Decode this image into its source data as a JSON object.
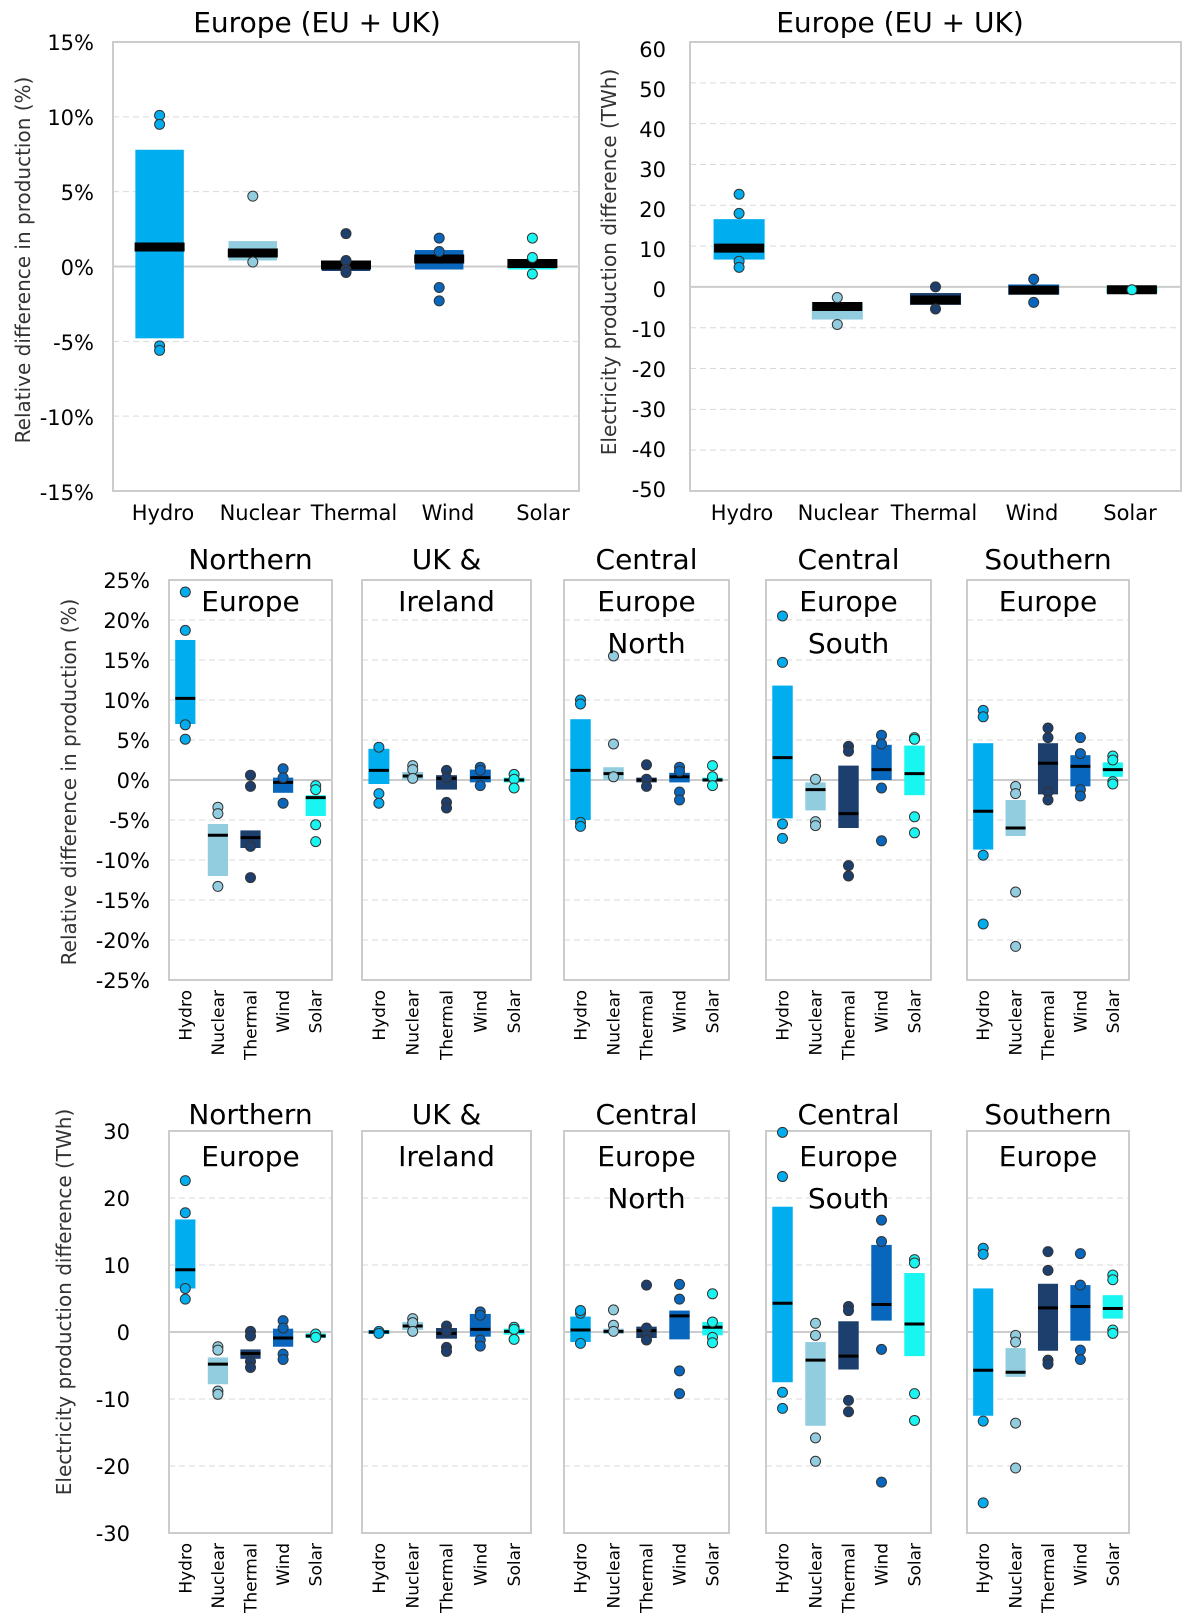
{
  "colors": {
    "Hydro": "#00aeef",
    "Nuclear": "#92cddf",
    "Thermal": "#1d3f6e",
    "Wind": "#0867bd",
    "Solar": "#19f5f0",
    "median": "#000000",
    "frame": "#cccccc",
    "grid": "#d9d9d9"
  },
  "chart_data": [
    {
      "type": "box",
      "title": "Europe (EU + UK)",
      "ylabel": "Relative difference in production (%)",
      "ylim": [
        -15,
        15
      ],
      "yticks": [
        -15,
        -10,
        -5,
        0,
        5,
        10,
        15
      ],
      "ytick_labels": [
        "-15%",
        "-10%",
        "-5%",
        "0%",
        "5%",
        "10%",
        "15%"
      ],
      "categories": [
        "Hydro",
        "Nuclear",
        "Thermal",
        "Wind",
        "Solar"
      ],
      "boxes": [
        {
          "name": "Hydro",
          "low": -4.8,
          "high": 7.8,
          "median": 1.3,
          "points": [
            10.1,
            9.5,
            -5.3,
            -5.6
          ]
        },
        {
          "name": "Nuclear",
          "low": 0.4,
          "high": 1.7,
          "median": 0.9,
          "points": [
            4.7,
            0.3
          ]
        },
        {
          "name": "Thermal",
          "low": -0.3,
          "high": 0.4,
          "median": 0.1,
          "points": [
            2.2,
            0.4,
            -0.2,
            -0.4
          ]
        },
        {
          "name": "Wind",
          "low": -0.2,
          "high": 1.1,
          "median": 0.5,
          "points": [
            1.9,
            1.0,
            -1.4,
            -2.3
          ]
        },
        {
          "name": "Solar",
          "low": -0.2,
          "high": 0.5,
          "median": 0.2,
          "points": [
            1.9,
            0.6,
            -0.5
          ]
        }
      ]
    },
    {
      "type": "box",
      "title": "Europe (EU + UK)",
      "ylabel": "Electricity production difference (TWh)",
      "ylim": [
        -50,
        60
      ],
      "yticks": [
        -50,
        -40,
        -30,
        -20,
        -10,
        0,
        10,
        20,
        30,
        40,
        50,
        60
      ],
      "ytick_labels": [
        "-50",
        "-40",
        "-30",
        "-20",
        "-10",
        "0",
        "10",
        "20",
        "30",
        "40",
        "50",
        "60"
      ],
      "categories": [
        "Hydro",
        "Nuclear",
        "Thermal",
        "Wind",
        "Solar"
      ],
      "boxes": [
        {
          "name": "Hydro",
          "low": 6.7,
          "high": 16.6,
          "median": 9.5,
          "points": [
            22.7,
            18.0,
            6.3,
            4.8
          ]
        },
        {
          "name": "Nuclear",
          "low": -8.0,
          "high": -3.7,
          "median": -4.8,
          "points": [
            -2.6,
            -9.2
          ]
        },
        {
          "name": "Thermal",
          "low": -4.4,
          "high": -1.5,
          "median": -3.2,
          "points": [
            0.0,
            -5.4
          ]
        },
        {
          "name": "Wind",
          "low": -1.9,
          "high": 0.6,
          "median": -0.8,
          "points": [
            1.9,
            -3.8
          ]
        },
        {
          "name": "Solar",
          "low": -1.5,
          "high": 0.0,
          "median": -0.7,
          "points": [
            -0.7
          ]
        }
      ]
    },
    {
      "type": "box",
      "ylabel": "Relative difference in production (%)",
      "ylim": [
        -25,
        25
      ],
      "yticks": [
        -25,
        -20,
        -15,
        -10,
        -5,
        0,
        5,
        10,
        15,
        20,
        25
      ],
      "ytick_labels": [
        "-25%",
        "-20%",
        "-15%",
        "-10%",
        "-5%",
        "0%",
        "5%",
        "10%",
        "15%",
        "20%",
        "25%"
      ],
      "categories": [
        "Hydro",
        "Nuclear",
        "Thermal",
        "Wind",
        "Solar"
      ],
      "panels": [
        {
          "title_lines": [
            "Northern",
            "Europe"
          ],
          "boxes": [
            {
              "name": "Hydro",
              "low": 7.0,
              "high": 17.5,
              "median": 10.2,
              "points": [
                23.5,
                18.7,
                6.9,
                5.1
              ]
            },
            {
              "name": "Nuclear",
              "low": -12.0,
              "high": -5.5,
              "median": -6.9,
              "points": [
                -3.4,
                -4.2,
                -13.3
              ]
            },
            {
              "name": "Thermal",
              "low": -8.5,
              "high": -6.3,
              "median": -7.2,
              "points": [
                0.6,
                -0.8,
                -8.3,
                -12.2
              ]
            },
            {
              "name": "Wind",
              "low": -1.6,
              "high": 0.3,
              "median": -0.3,
              "points": [
                1.4,
                0.3,
                -2.9
              ]
            },
            {
              "name": "Solar",
              "low": -4.5,
              "high": -1.9,
              "median": -2.2,
              "points": [
                -0.7,
                -1.2,
                -5.6,
                -7.7
              ]
            }
          ]
        },
        {
          "title_lines": [
            "UK &",
            "Ireland"
          ],
          "boxes": [
            {
              "name": "Hydro",
              "low": -0.5,
              "high": 3.9,
              "median": 1.2,
              "points": [
                4.1,
                -1.7,
                -2.9
              ]
            },
            {
              "name": "Nuclear",
              "low": 0.0,
              "high": 1.0,
              "median": 0.5,
              "points": [
                1.8,
                1.3,
                0.2
              ]
            },
            {
              "name": "Thermal",
              "low": -1.2,
              "high": 0.6,
              "median": 0.2,
              "points": [
                1.2,
                0.3,
                -2.8,
                -3.5
              ]
            },
            {
              "name": "Wind",
              "low": -0.3,
              "high": 1.3,
              "median": 0.3,
              "points": [
                1.6,
                1.2,
                -0.7
              ]
            },
            {
              "name": "Solar",
              "low": -0.3,
              "high": 0.3,
              "median": 0.0,
              "points": [
                0.7,
                0.1,
                -1.0
              ]
            }
          ]
        },
        {
          "title_lines": [
            "Central",
            "Europe",
            "North"
          ],
          "boxes": [
            {
              "name": "Hydro",
              "low": -5.0,
              "high": 7.6,
              "median": 1.2,
              "points": [
                10.0,
                9.5,
                -5.3,
                -5.8
              ]
            },
            {
              "name": "Nuclear",
              "low": 0.0,
              "high": 1.6,
              "median": 0.8,
              "points": [
                15.5,
                4.5,
                0.4
              ]
            },
            {
              "name": "Thermal",
              "low": -0.3,
              "high": 0.3,
              "median": 0.0,
              "points": [
                1.9,
                0.1,
                -0.8
              ]
            },
            {
              "name": "Wind",
              "low": -0.3,
              "high": 0.9,
              "median": 0.4,
              "points": [
                1.6,
                1.1,
                -1.5,
                -2.5
              ]
            },
            {
              "name": "Solar",
              "low": -0.2,
              "high": 0.3,
              "median": 0.0,
              "points": [
                1.8,
                0.4,
                -0.7
              ]
            }
          ]
        },
        {
          "title_lines": [
            "Central",
            "Europe",
            "South"
          ],
          "boxes": [
            {
              "name": "Hydro",
              "low": -4.8,
              "high": 11.8,
              "median": 2.8,
              "points": [
                20.5,
                14.7,
                -5.5,
                -7.3
              ]
            },
            {
              "name": "Nuclear",
              "low": -3.8,
              "high": -0.3,
              "median": -1.2,
              "points": [
                0.1,
                -5.2,
                -5.7
              ]
            },
            {
              "name": "Thermal",
              "low": -6.0,
              "high": 1.8,
              "median": -4.2,
              "points": [
                4.2,
                3.6,
                -10.7,
                -12.0
              ]
            },
            {
              "name": "Wind",
              "low": 0.0,
              "high": 4.4,
              "median": 1.3,
              "points": [
                5.6,
                4.5,
                -1.0,
                -7.6
              ]
            },
            {
              "name": "Solar",
              "low": -1.9,
              "high": 4.3,
              "median": 0.8,
              "points": [
                5.3,
                5.1,
                -4.6,
                -6.6
              ]
            }
          ]
        },
        {
          "title_lines": [
            "Southern",
            "Europe"
          ],
          "boxes": [
            {
              "name": "Hydro",
              "low": -8.7,
              "high": 4.6,
              "median": -3.9,
              "points": [
                8.7,
                7.9,
                -9.4,
                -18.0
              ]
            },
            {
              "name": "Nuclear",
              "low": -7.0,
              "high": -2.5,
              "median": -6.0,
              "points": [
                -0.8,
                -1.7,
                -14.0,
                -20.8
              ]
            },
            {
              "name": "Thermal",
              "low": -1.8,
              "high": 4.6,
              "median": 2.1,
              "points": [
                6.5,
                5.3,
                -1.5,
                -2.5
              ]
            },
            {
              "name": "Wind",
              "low": -0.8,
              "high": 3.1,
              "median": 1.7,
              "points": [
                5.3,
                3.3,
                -1.2,
                -2.0
              ]
            },
            {
              "name": "Solar",
              "low": 0.4,
              "high": 2.2,
              "median": 1.3,
              "points": [
                3.0,
                2.5,
                -0.2,
                -0.5
              ]
            }
          ]
        }
      ]
    },
    {
      "type": "box",
      "ylabel": "Electricity production  difference (TWh)",
      "ylim": [
        -30,
        30
      ],
      "yticks": [
        -30,
        -20,
        -10,
        0,
        10,
        20,
        30
      ],
      "ytick_labels": [
        "-30",
        "-20",
        "-10",
        "0",
        "10",
        "20",
        "30"
      ],
      "categories": [
        "Hydro",
        "Nuclear",
        "Thermal",
        "Wind",
        "Solar"
      ],
      "panels": [
        {
          "title_lines": [
            "Northern",
            "Europe"
          ],
          "boxes": [
            {
              "name": "Hydro",
              "low": 6.5,
              "high": 16.8,
              "median": 9.3,
              "points": [
                22.6,
                17.8,
                6.5,
                4.9
              ]
            },
            {
              "name": "Nuclear",
              "low": -7.8,
              "high": -3.8,
              "median": -4.8,
              "points": [
                -2.2,
                -2.7,
                -8.8,
                -9.3
              ]
            },
            {
              "name": "Thermal",
              "low": -4.0,
              "high": -2.6,
              "median": -3.2,
              "points": [
                0.1,
                -0.6,
                -4.4,
                -5.3
              ]
            },
            {
              "name": "Wind",
              "low": -2.2,
              "high": 0.5,
              "median": -0.9,
              "points": [
                1.7,
                0.6,
                -3.3,
                -4.1
              ]
            },
            {
              "name": "Solar",
              "low": -0.9,
              "high": -0.2,
              "median": -0.6,
              "points": [
                -0.3,
                -0.8
              ]
            }
          ]
        },
        {
          "title_lines": [
            "UK &",
            "Ireland"
          ],
          "boxes": [
            {
              "name": "Hydro",
              "low": -0.3,
              "high": 0.3,
              "median": 0.0,
              "points": [
                0.1,
                -0.2
              ]
            },
            {
              "name": "Nuclear",
              "low": 0.3,
              "high": 1.5,
              "median": 0.9,
              "points": [
                2.0,
                1.4,
                0.1
              ]
            },
            {
              "name": "Thermal",
              "low": -1.0,
              "high": 0.6,
              "median": -0.2,
              "points": [
                0.9,
                0.1,
                -2.3,
                -2.9
              ]
            },
            {
              "name": "Wind",
              "low": -0.7,
              "high": 2.7,
              "median": 0.4,
              "points": [
                3.0,
                2.5,
                -1.2,
                -2.1
              ]
            },
            {
              "name": "Solar",
              "low": -0.4,
              "high": 0.5,
              "median": 0.1,
              "points": [
                0.7,
                0.4,
                -1.1
              ]
            }
          ]
        },
        {
          "title_lines": [
            "Central",
            "Europe",
            "North"
          ],
          "boxes": [
            {
              "name": "Hydro",
              "low": -1.5,
              "high": 2.3,
              "median": 0.3,
              "points": [
                2.8,
                3.2,
                -1.7
              ]
            },
            {
              "name": "Nuclear",
              "low": -0.3,
              "high": 0.5,
              "median": 0.1,
              "points": [
                3.3,
                1.0,
                0.1
              ]
            },
            {
              "name": "Thermal",
              "low": -0.9,
              "high": 0.8,
              "median": 0.2,
              "points": [
                7.0,
                0.6,
                -0.5,
                -1.2
              ]
            },
            {
              "name": "Wind",
              "low": -1.1,
              "high": 3.2,
              "median": 2.4,
              "points": [
                7.1,
                4.9,
                -5.8,
                -9.2
              ]
            },
            {
              "name": "Solar",
              "low": -0.5,
              "high": 1.5,
              "median": 0.7,
              "points": [
                5.7,
                1.5,
                -0.8,
                -1.6
              ]
            }
          ]
        },
        {
          "title_lines": [
            "Central",
            "Europe",
            "South"
          ],
          "boxes": [
            {
              "name": "Hydro",
              "low": -7.5,
              "high": 18.7,
              "median": 4.3,
              "points": [
                29.8,
                23.2,
                -9.0,
                -11.4
              ]
            },
            {
              "name": "Nuclear",
              "low": -14.0,
              "high": -1.5,
              "median": -4.2,
              "points": [
                1.3,
                -0.5,
                -15.8,
                -19.3
              ]
            },
            {
              "name": "Thermal",
              "low": -5.6,
              "high": 1.6,
              "median": -3.6,
              "points": [
                3.8,
                3.2,
                -10.2,
                -11.9
              ]
            },
            {
              "name": "Wind",
              "low": 1.7,
              "high": 13.0,
              "median": 4.1,
              "points": [
                16.7,
                13.5,
                -2.6,
                -22.4
              ]
            },
            {
              "name": "Solar",
              "low": -3.6,
              "high": 8.8,
              "median": 1.2,
              "points": [
                10.8,
                10.3,
                -9.2,
                -13.2
              ]
            }
          ]
        },
        {
          "title_lines": [
            "Southern",
            "Europe"
          ],
          "boxes": [
            {
              "name": "Hydro",
              "low": -12.5,
              "high": 6.5,
              "median": -5.7,
              "points": [
                12.5,
                11.6,
                -13.3,
                -25.5
              ]
            },
            {
              "name": "Nuclear",
              "low": -6.7,
              "high": -2.4,
              "median": -6.0,
              "points": [
                -0.5,
                -1.5,
                -13.6,
                -20.3
              ]
            },
            {
              "name": "Thermal",
              "low": -2.8,
              "high": 7.2,
              "median": 3.6,
              "points": [
                12.0,
                9.2,
                -4.2,
                -4.8
              ]
            },
            {
              "name": "Wind",
              "low": -1.3,
              "high": 7.0,
              "median": 3.8,
              "points": [
                11.7,
                7.0,
                -2.7,
                -4.1
              ]
            },
            {
              "name": "Solar",
              "low": 2.0,
              "high": 5.5,
              "median": 3.5,
              "points": [
                8.5,
                7.8,
                0.3,
                -0.2
              ]
            }
          ]
        }
      ]
    }
  ]
}
